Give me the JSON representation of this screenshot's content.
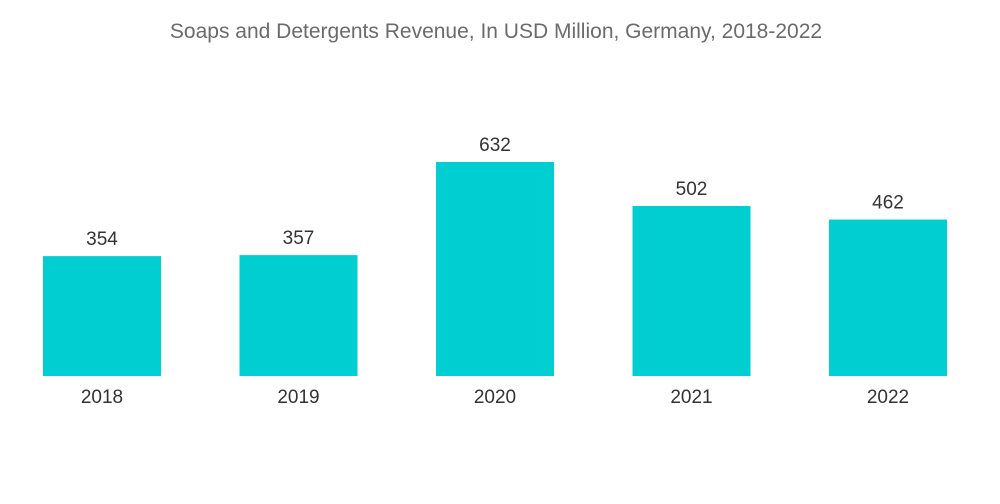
{
  "chart_data": {
    "type": "bar",
    "title": "Soaps and Detergents Revenue, In USD Million, Germany, 2018-2022",
    "categories": [
      "2018",
      "2019",
      "2020",
      "2021",
      "2022"
    ],
    "values": [
      354,
      357,
      632,
      502,
      462
    ],
    "value_labels": [
      "354",
      "357",
      "632",
      "502",
      "462"
    ],
    "xlabel": "",
    "ylabel": "",
    "ylim": [
      0,
      632
    ],
    "grid": false,
    "legend": "none",
    "bar_color": "#00CED1"
  }
}
